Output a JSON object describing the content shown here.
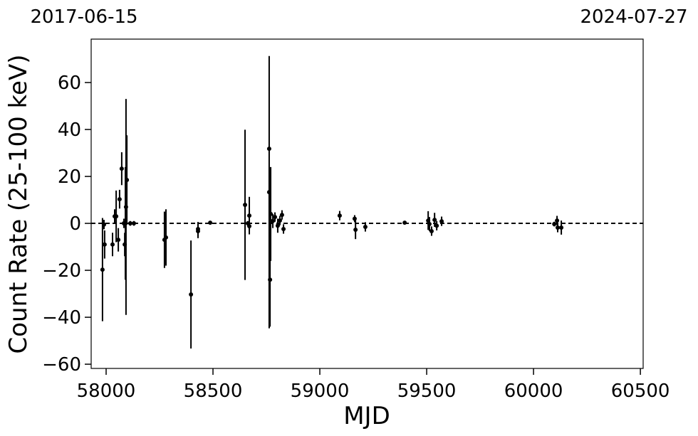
{
  "chart_data": {
    "type": "errorbar",
    "top_labels": [
      "2017-06-15",
      "2024-07-27"
    ],
    "xlabel": "MJD",
    "ylabel": "Count Rate (25-100 keV)",
    "color": "#000000",
    "hline": 0,
    "xlim": [
      57930,
      60513
    ],
    "ylim": [
      -61.8,
      78.5
    ],
    "xticks": [
      58000,
      58500,
      59000,
      59500,
      60000,
      60500
    ],
    "yticks": [
      {
        "value": -60,
        "label": "−60"
      },
      {
        "value": -40,
        "label": "−40"
      },
      {
        "value": -20,
        "label": "−20"
      },
      0,
      20,
      40,
      60
    ],
    "x": [
      57983,
      57993,
      57990,
      58030,
      58040,
      58047,
      58057,
      58063,
      58073,
      58083,
      58087,
      58093,
      58097,
      58090,
      58113,
      58130,
      58273,
      58280,
      58397,
      58430,
      58430,
      58487,
      58650,
      58663,
      58670,
      58670,
      58763,
      58767,
      58763,
      58770,
      58780,
      58790,
      58803,
      58813,
      58823,
      58830,
      59093,
      59163,
      59167,
      59213,
      59397,
      59507,
      59513,
      59523,
      59537,
      59547,
      59570,
      60097,
      60110,
      60113,
      60130
    ],
    "values": [
      -19.7,
      -9,
      -0.5,
      -9,
      3,
      3,
      -7,
      10.3,
      23.3,
      0,
      -9,
      7,
      18.5,
      0,
      0,
      0,
      -7,
      -6,
      -30.3,
      -3.3,
      -2.4,
      0.3,
      7.9,
      0,
      3.3,
      -1.2,
      31.8,
      -24,
      13.3,
      4,
      1,
      2.7,
      -1,
      1.2,
      3.6,
      -2.4,
      3.3,
      2,
      -2.7,
      -1.5,
      0.3,
      1.2,
      -0.3,
      -3.3,
      1.5,
      -1,
      0.9,
      -0.3,
      1.2,
      -1.8,
      -1.8
    ],
    "errors": [
      22,
      6,
      2,
      5,
      3,
      11,
      5,
      4,
      7,
      2,
      5,
      46,
      19,
      24,
      1,
      1,
      12,
      12,
      23,
      3,
      3,
      0.5,
      32,
      1,
      8,
      2,
      0.5,
      20,
      58,
      20,
      3,
      2,
      3,
      2,
      2,
      2,
      2,
      1.5,
      4,
      2,
      0.5,
      4,
      3,
      2,
      3,
      2,
      2,
      1,
      2,
      2,
      3
    ]
  }
}
